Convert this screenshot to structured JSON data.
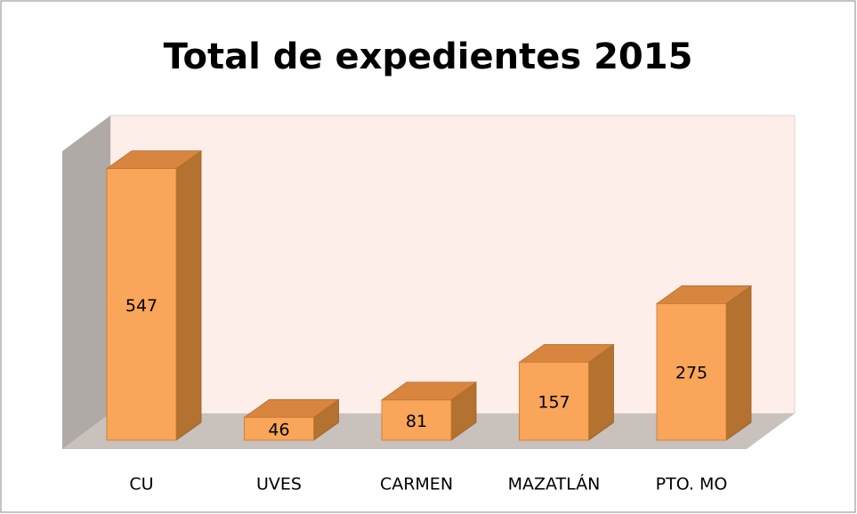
{
  "chart_data": {
    "type": "bar3d",
    "title": "Total de expedientes 2015",
    "categories": [
      "CU",
      "UVES",
      "CARMEN",
      "MAZATLÁN",
      "PTO. MO"
    ],
    "values": [
      547,
      46,
      81,
      157,
      275
    ],
    "color": "#f9a55a",
    "ylim": [
      0,
      600
    ]
  }
}
